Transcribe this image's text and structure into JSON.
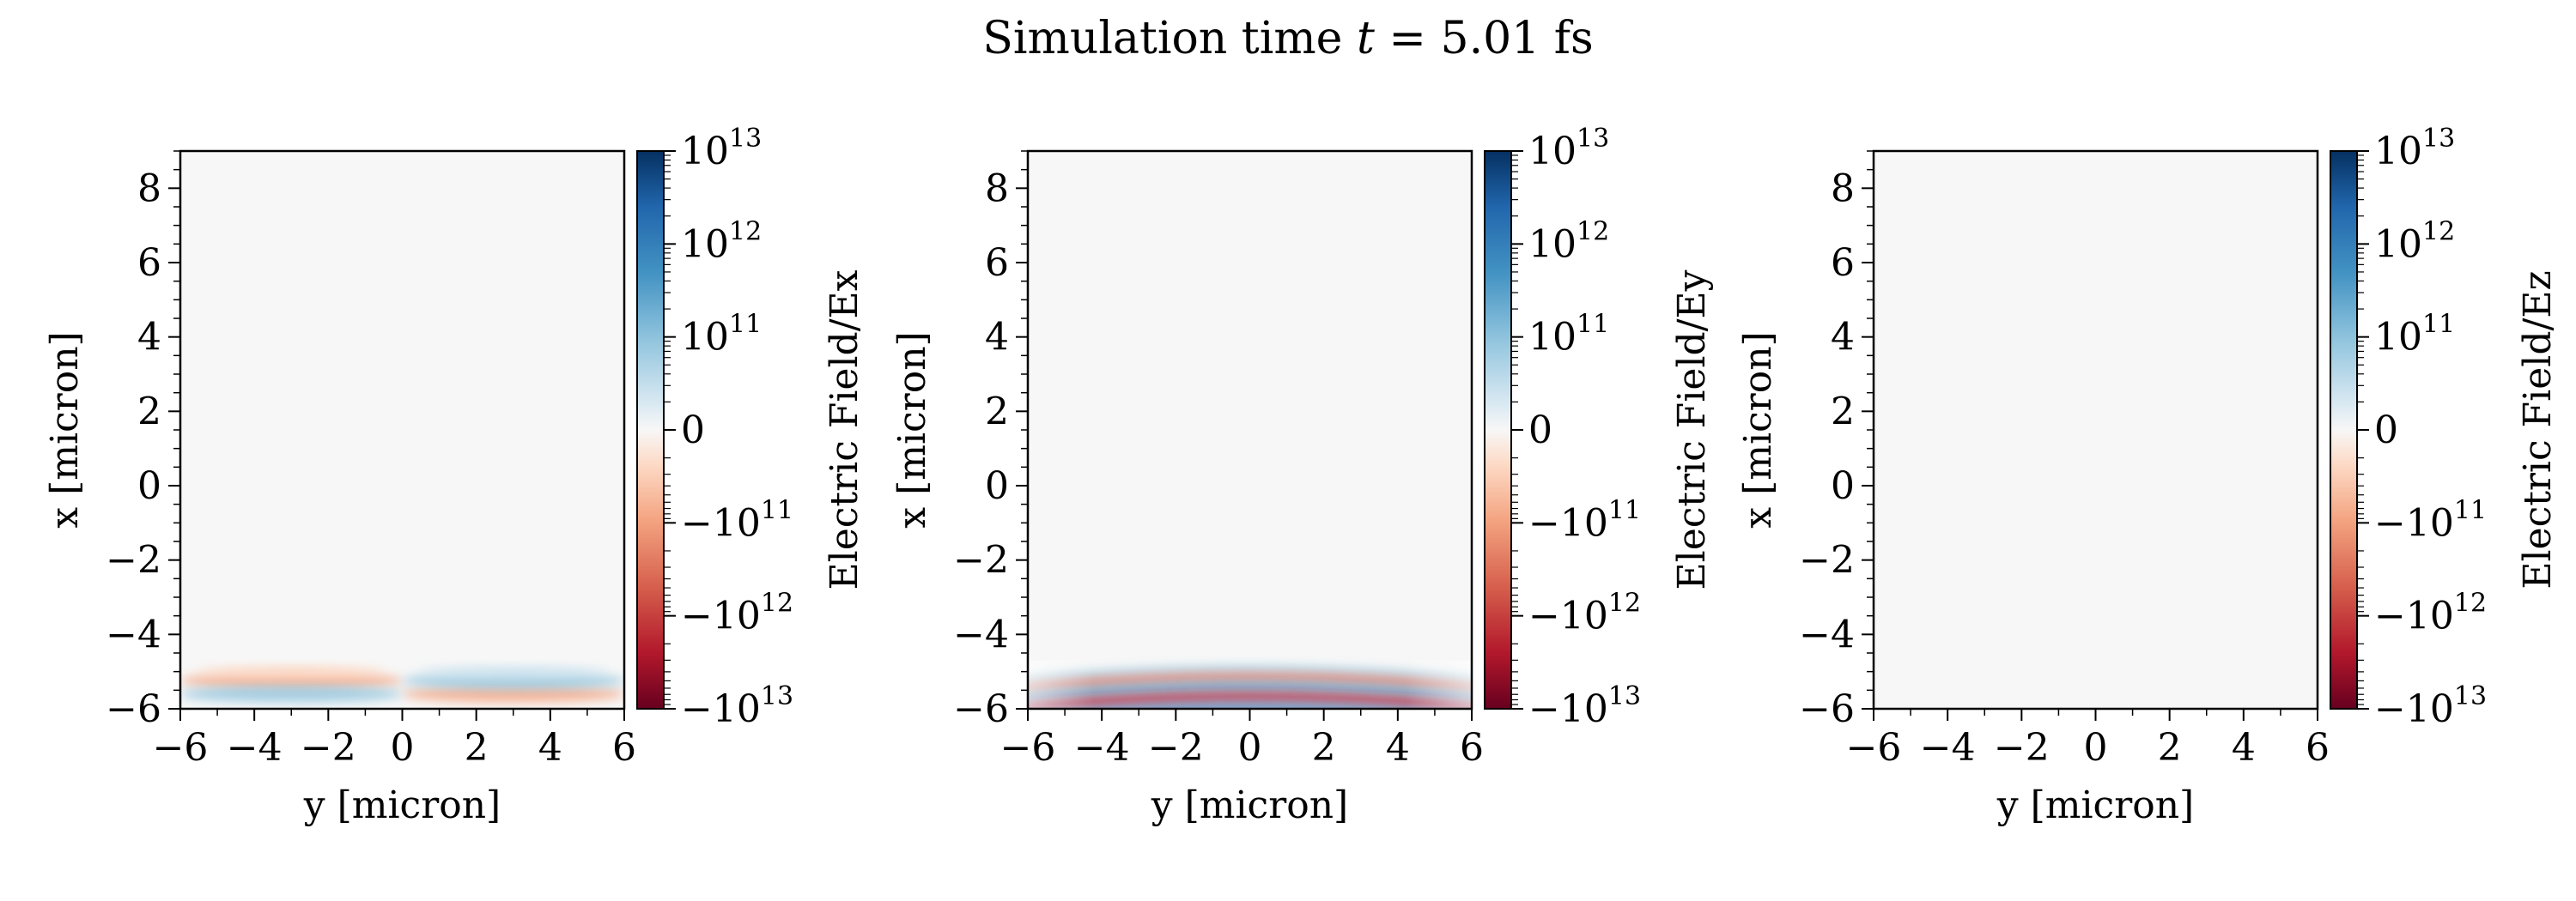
{
  "figure": {
    "title_prefix": "Simulation time ",
    "title_var": "t",
    "title_suffix": " = 5.01 fs"
  },
  "chart_data": [
    {
      "type": "heatmap",
      "xlabel": "y [micron]",
      "ylabel": "x [micron]",
      "xlim": [
        -6,
        6
      ],
      "ylim": [
        -6,
        9
      ],
      "xticks": [
        -6,
        -4,
        -2,
        0,
        2,
        4,
        6
      ],
      "xtick_labels": [
        "−6",
        "−4",
        "−2",
        "0",
        "2",
        "4",
        "6"
      ],
      "yticks": [
        -6,
        -4,
        -2,
        0,
        2,
        4,
        6,
        8
      ],
      "ytick_labels": [
        "−6",
        "−4",
        "−2",
        "0",
        "2",
        "4",
        "6",
        "8"
      ],
      "colorbar": {
        "label": "Electric Field/Ex",
        "scale": "symlog",
        "range": [
          -10000000000000.0,
          10000000000000.0
        ],
        "colormap": "RdBu",
        "tick_labels": [
          {
            "value": 10000000000000.0,
            "base": "10",
            "exp": "13"
          },
          {
            "value": 1000000000000.0,
            "base": "10",
            "exp": "12"
          },
          {
            "value": 100000000000.0,
            "base": "10",
            "exp": "11"
          },
          {
            "value": 0,
            "base": "0",
            "exp": ""
          },
          {
            "value": -100000000000.0,
            "base": "−10",
            "exp": "11"
          },
          {
            "value": -1000000000000.0,
            "base": "−10",
            "exp": "12"
          },
          {
            "value": -10000000000000.0,
            "base": "−10",
            "exp": "13"
          }
        ]
      },
      "field": {
        "component": "Ex",
        "pulse_center_x": -5.4,
        "pulse_extent_x": [
          -6,
          -4.9
        ],
        "amplitude": "weak",
        "pattern": "antisymmetric in y"
      }
    },
    {
      "type": "heatmap",
      "xlabel": "y [micron]",
      "ylabel": "x [micron]",
      "xlim": [
        -6,
        6
      ],
      "ylim": [
        -6,
        9
      ],
      "xticks": [
        -6,
        -4,
        -2,
        0,
        2,
        4,
        6
      ],
      "xtick_labels": [
        "−6",
        "−4",
        "−2",
        "0",
        "2",
        "4",
        "6"
      ],
      "yticks": [
        -6,
        -4,
        -2,
        0,
        2,
        4,
        6,
        8
      ],
      "ytick_labels": [
        "−6",
        "−4",
        "−2",
        "0",
        "2",
        "4",
        "6",
        "8"
      ],
      "colorbar": {
        "label": "Electric Field/Ey",
        "scale": "symlog",
        "range": [
          -10000000000000.0,
          10000000000000.0
        ],
        "colormap": "RdBu",
        "tick_labels": [
          {
            "value": 10000000000000.0,
            "base": "10",
            "exp": "13"
          },
          {
            "value": 1000000000000.0,
            "base": "10",
            "exp": "12"
          },
          {
            "value": 100000000000.0,
            "base": "10",
            "exp": "11"
          },
          {
            "value": 0,
            "base": "0",
            "exp": ""
          },
          {
            "value": -100000000000.0,
            "base": "−10",
            "exp": "11"
          },
          {
            "value": -1000000000000.0,
            "base": "−10",
            "exp": "12"
          },
          {
            "value": -10000000000000.0,
            "base": "−10",
            "exp": "13"
          }
        ]
      },
      "field": {
        "component": "Ey",
        "pulse_center_x": -5.3,
        "pulse_extent_x": [
          -6,
          -4.8
        ],
        "amplitude": "strong",
        "pattern": "curved fringes"
      }
    },
    {
      "type": "heatmap",
      "xlabel": "y [micron]",
      "ylabel": "x [micron]",
      "xlim": [
        -6,
        6
      ],
      "ylim": [
        -6,
        9
      ],
      "xticks": [
        -6,
        -4,
        -2,
        0,
        2,
        4,
        6
      ],
      "xtick_labels": [
        "−6",
        "−4",
        "−2",
        "0",
        "2",
        "4",
        "6"
      ],
      "yticks": [
        -6,
        -4,
        -2,
        0,
        2,
        4,
        6,
        8
      ],
      "ytick_labels": [
        "−6",
        "−4",
        "−2",
        "0",
        "2",
        "4",
        "6",
        "8"
      ],
      "colorbar": {
        "label": "Electric Field/Ez",
        "scale": "symlog",
        "range": [
          -10000000000000.0,
          10000000000000.0
        ],
        "colormap": "RdBu",
        "tick_labels": [
          {
            "value": 10000000000000.0,
            "base": "10",
            "exp": "13"
          },
          {
            "value": 1000000000000.0,
            "base": "10",
            "exp": "12"
          },
          {
            "value": 100000000000.0,
            "base": "10",
            "exp": "11"
          },
          {
            "value": 0,
            "base": "0",
            "exp": ""
          },
          {
            "value": -100000000000.0,
            "base": "−10",
            "exp": "11"
          },
          {
            "value": -1000000000000.0,
            "base": "−10",
            "exp": "12"
          },
          {
            "value": -10000000000000.0,
            "base": "−10",
            "exp": "13"
          }
        ]
      },
      "field": {
        "component": "Ez",
        "amplitude": "zero",
        "pattern": "uniform"
      }
    }
  ]
}
